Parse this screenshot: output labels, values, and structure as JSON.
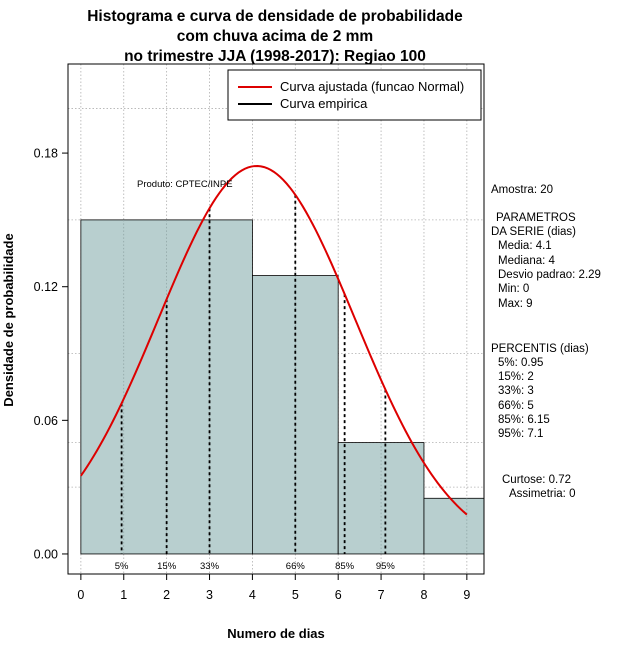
{
  "chart_data": {
    "type": "bar",
    "title_lines": [
      "Histograma e curva de densidade de probabilidade",
      "com chuva acima de 2 mm",
      "no trimestre JJA (1998-2017): Regiao 100"
    ],
    "xlabel": "Numero de dias",
    "ylabel": "Densidade de probabilidade",
    "xlim": [
      -0.3,
      9.4
    ],
    "ylim": [
      -0.009,
      0.22
    ],
    "xticks": [
      0,
      1,
      2,
      3,
      4,
      5,
      6,
      7,
      8,
      9
    ],
    "yticks": [
      0.0,
      0.06,
      0.12,
      0.18
    ],
    "ytick_labels": [
      "0.00",
      "0.06",
      "0.12",
      "0.18"
    ],
    "grid": true,
    "histogram_bins": [
      {
        "start": 0,
        "end": 4,
        "density": 0.15
      },
      {
        "start": 4,
        "end": 6,
        "density": 0.125
      },
      {
        "start": 6,
        "end": 8,
        "density": 0.05
      },
      {
        "start": 8,
        "end": 9.4,
        "density": 0.025
      }
    ],
    "fitted_curve": {
      "name": "Curva ajustada (funcao Normal)",
      "color": "#dd0000",
      "mean": 4.1,
      "sd": 2.29,
      "x_range": [
        0,
        9
      ]
    },
    "empirical_curve": {
      "name": "Curva empirica",
      "color": "#000000"
    },
    "percentile_lines": [
      {
        "label": "5%",
        "x": 0.95
      },
      {
        "label": "15%",
        "x": 2
      },
      {
        "label": "33%",
        "x": 3
      },
      {
        "label": "66%",
        "x": 5
      },
      {
        "label": "85%",
        "x": 6.15
      },
      {
        "label": "95%",
        "x": 7.1
      }
    ],
    "bar_color": "#b8cfcf",
    "legend_position": "top-right"
  },
  "credit": "Produto: CPTEC/INPE",
  "stats": {
    "sample": "Amostra: 20",
    "params_title_1": "PARAMETROS",
    "params_title_2": "DA SERIE (dias)",
    "media": "Media: 4.1",
    "mediana": "Mediana: 4",
    "desvio": "Desvio padrao: 2.29",
    "min": "Min: 0",
    "max": "Max: 9",
    "pct_title": "PERCENTIS (dias)",
    "p5": "5%: 0.95",
    "p15": "15%: 2",
    "p33": "33%: 3",
    "p66": "66%: 5",
    "p85": "85%: 6.15",
    "p95": "95%: 7.1",
    "curtose": "Curtose: 0.72",
    "assimetria": "Assimetria: 0"
  }
}
